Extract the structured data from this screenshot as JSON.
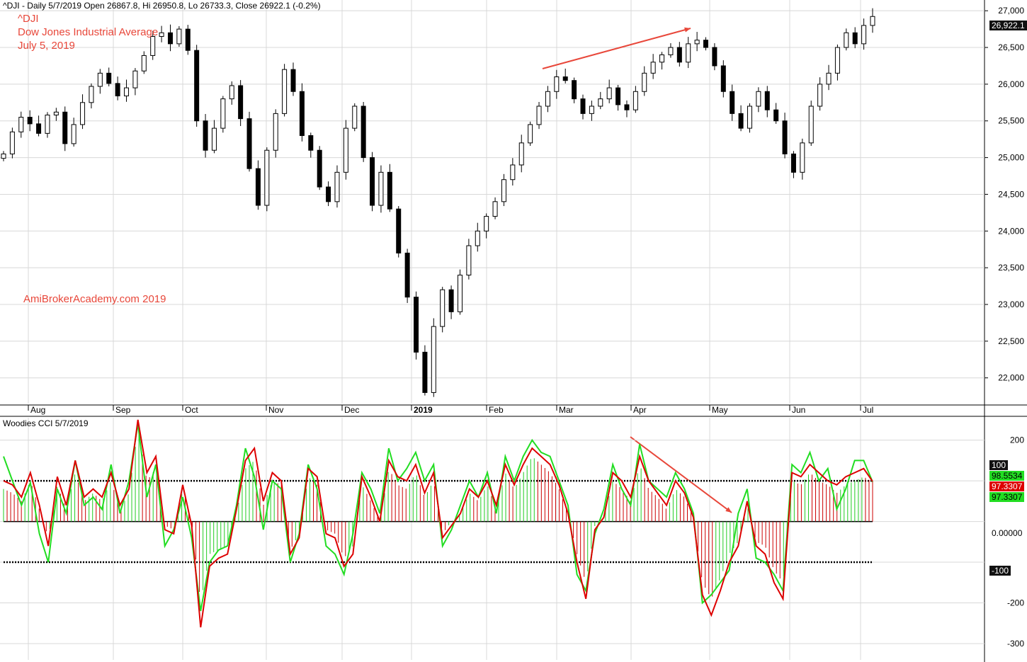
{
  "header": {
    "price_line": "^DJI - Daily 5/7/2019 Open 26867.8, Hi 26950.8, Lo 26733.3, Close 26922.1 (-0.2%)",
    "indicator_line": "Woodies CCI  5/7/2019"
  },
  "annotations": {
    "symbol": "^DJI",
    "name": "Dow Jones Industrial Average",
    "date": "July 5, 2019",
    "watermark": "AmiBrokerAcademy.com  2019"
  },
  "colors": {
    "up_hist": "#22cc22",
    "down_hist": "#cc0000",
    "cci_line": "#22dd22",
    "turbo_line": "#dd0000",
    "annotation": "#e8473a",
    "grid": "#d8d8d8"
  },
  "value_tags": {
    "last_price": "26,922.1",
    "level_100": "100",
    "cci_value": "98.5534",
    "turbo_value": "97.3307",
    "hist_value": "97.3307",
    "zero_value": "0.00000",
    "level_neg100": "-100"
  },
  "chart_data": [
    {
      "type": "candlestick",
      "title": "Dow Jones Industrial Average",
      "x_ticks": [
        "Aug",
        "Sep",
        "Oct",
        "Nov",
        "Dec",
        "2019",
        "Feb",
        "Mar",
        "Apr",
        "May",
        "Jun",
        "Jul"
      ],
      "y_ticks": [
        "22,000",
        "22,500",
        "23,000",
        "23,500",
        "24,000",
        "24,500",
        "25,000",
        "25,500",
        "26,000",
        "26,500",
        "27,000"
      ],
      "ylim": [
        21650,
        27050
      ],
      "grid": true,
      "last_close": 26922.1,
      "close_series": [
        25050,
        25350,
        25550,
        25460,
        25330,
        25580,
        25620,
        25190,
        25450,
        25750,
        25970,
        26150,
        26010,
        25840,
        25950,
        26180,
        26390,
        26650,
        26700,
        26550,
        26750,
        26460,
        25500,
        25100,
        25400,
        25800,
        25980,
        25530,
        24850,
        24350,
        25100,
        25600,
        26200,
        25900,
        25300,
        25100,
        24600,
        24400,
        24800,
        25400,
        25700,
        25000,
        24350,
        24800,
        24300,
        23700,
        23100,
        22350,
        21800,
        22700,
        23200,
        22900,
        23400,
        23800,
        24000,
        24200,
        24400,
        24700,
        24900,
        25200,
        25450,
        25700,
        25900,
        26100,
        26050,
        25800,
        25600,
        25700,
        25800,
        25950,
        25720,
        25650,
        25900,
        26150,
        26300,
        26400,
        26500,
        26300,
        26550,
        26600,
        26500,
        26250,
        25900,
        25600,
        25400,
        25700,
        25900,
        25650,
        25500,
        25050,
        24800,
        25200,
        25700,
        26000,
        26150,
        26500,
        26700,
        26550,
        26800,
        26922.1
      ]
    },
    {
      "type": "line",
      "title": "Woodies CCI",
      "y_ticks": [
        "200",
        "100",
        "0.00000",
        "-100",
        "-200",
        "-300"
      ],
      "ylim": [
        -340,
        255
      ],
      "levels": [
        100,
        0,
        -100
      ],
      "series": [
        {
          "values": [
            160,
            100,
            40,
            95,
            -30,
            -100,
            80,
            20,
            150,
            40,
            60,
            30,
            140,
            20,
            100,
            240,
            60,
            140,
            -60,
            -20,
            60,
            -40,
            -220,
            -100,
            -70,
            -60,
            40,
            180,
            110,
            -20,
            100,
            80,
            -100,
            -30,
            140,
            80,
            -60,
            -80,
            -130,
            -30,
            120,
            80,
            20,
            180,
            100,
            130,
            170,
            100,
            140,
            -60,
            -20,
            40,
            100,
            60,
            120,
            20,
            160,
            100,
            160,
            200,
            170,
            160,
            100,
            40,
            -130,
            -170,
            -30,
            30,
            140,
            80,
            40,
            190,
            100,
            80,
            60,
            120,
            80,
            20,
            -200,
            -180,
            -150,
            -120,
            20,
            80,
            -90,
            -100,
            -130,
            -170,
            140,
            120,
            170,
            100,
            130,
            30,
            80,
            150,
            150,
            97.3
          ]
        },
        {
          "values": [
            100,
            90,
            60,
            120,
            40,
            -60,
            110,
            40,
            150,
            60,
            80,
            60,
            120,
            40,
            80,
            250,
            120,
            160,
            -20,
            -30,
            90,
            -10,
            -260,
            -110,
            -90,
            -80,
            30,
            150,
            180,
            50,
            120,
            100,
            -80,
            -40,
            130,
            110,
            -30,
            -40,
            -110,
            -80,
            110,
            60,
            0,
            150,
            110,
            100,
            140,
            70,
            120,
            -40,
            -10,
            20,
            80,
            60,
            100,
            40,
            140,
            90,
            140,
            180,
            160,
            140,
            90,
            20,
            -100,
            -190,
            -20,
            10,
            120,
            100,
            60,
            160,
            100,
            70,
            40,
            100,
            70,
            10,
            -180,
            -230,
            -170,
            -100,
            -60,
            50,
            -60,
            -80,
            -150,
            -190,
            120,
            110,
            140,
            120,
            100,
            90,
            110,
            120,
            130,
            98.55
          ]
        },
        {
          "values": [
            80,
            70,
            50,
            100,
            30,
            -40,
            90,
            30,
            120,
            50,
            70,
            50,
            100,
            30,
            70,
            230,
            100,
            130,
            -10,
            -20,
            80,
            0,
            -200,
            -80,
            -70,
            -60,
            20,
            130,
            150,
            40,
            100,
            90,
            -70,
            -30,
            110,
            90,
            -20,
            -30,
            -90,
            -60,
            90,
            50,
            0,
            130,
            90,
            80,
            120,
            60,
            100,
            -30,
            0,
            20,
            70,
            50,
            90,
            30,
            120,
            80,
            120,
            160,
            140,
            120,
            80,
            20,
            -80,
            -150,
            -10,
            10,
            100,
            80,
            50,
            140,
            80,
            60,
            30,
            80,
            60,
            10,
            -150,
            -190,
            -140,
            -80,
            -50,
            40,
            -50,
            -60,
            -120,
            -150,
            100,
            90,
            120,
            100,
            90,
            70,
            90,
            100,
            110,
            97.33
          ]
        }
      ]
    }
  ]
}
